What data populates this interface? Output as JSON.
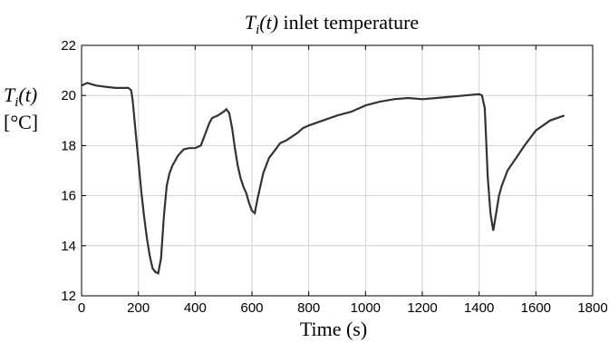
{
  "chart_data": {
    "type": "line",
    "title": {
      "symbol": "T",
      "subscript": "i",
      "arg": "(t)",
      "rest": " inlet temperature"
    },
    "xlabel": "Time (s)",
    "ylabel": {
      "symbol": "T",
      "subscript": "i",
      "arg": "(t)",
      "unit": "[°C]"
    },
    "xlim": [
      0,
      1800
    ],
    "ylim": [
      12,
      22
    ],
    "xticks": [
      0,
      200,
      400,
      600,
      800,
      1000,
      1200,
      1400,
      1600,
      1800
    ],
    "yticks": [
      12,
      14,
      16,
      18,
      20,
      22
    ],
    "grid": true,
    "line_color": "#333333",
    "series": [
      {
        "x": [
          0,
          20,
          50,
          80,
          120,
          150,
          165,
          175,
          180,
          190,
          200,
          210,
          220,
          230,
          240,
          250,
          260,
          270,
          280,
          290,
          300,
          310,
          320,
          340,
          360,
          380,
          400,
          420,
          440,
          450,
          460,
          480,
          500,
          510,
          520,
          530,
          540,
          550,
          560,
          570,
          580,
          590,
          600,
          610,
          620,
          640,
          660,
          680,
          700,
          720,
          740,
          760,
          780,
          800,
          850,
          900,
          950,
          1000,
          1050,
          1100,
          1150,
          1200,
          1250,
          1300,
          1350,
          1400,
          1410,
          1420,
          1425,
          1430,
          1440,
          1450,
          1460,
          1470,
          1480,
          1500,
          1530,
          1560,
          1600,
          1650,
          1700
        ],
        "y": [
          20.4,
          20.5,
          20.4,
          20.35,
          20.3,
          20.3,
          20.3,
          20.2,
          19.8,
          18.6,
          17.4,
          16.2,
          15.2,
          14.3,
          13.6,
          13.1,
          12.95,
          12.9,
          13.5,
          15.2,
          16.4,
          16.9,
          17.2,
          17.6,
          17.85,
          17.9,
          17.9,
          18.0,
          18.6,
          18.9,
          19.1,
          19.2,
          19.35,
          19.45,
          19.3,
          18.7,
          17.9,
          17.2,
          16.7,
          16.35,
          16.1,
          15.7,
          15.4,
          15.3,
          15.9,
          16.9,
          17.5,
          17.8,
          18.1,
          18.2,
          18.35,
          18.5,
          18.7,
          18.8,
          19.0,
          19.2,
          19.35,
          19.6,
          19.75,
          19.85,
          19.9,
          19.85,
          19.9,
          19.95,
          20.0,
          20.05,
          20.0,
          19.5,
          18.2,
          16.8,
          15.3,
          14.6,
          15.3,
          16.0,
          16.4,
          17.0,
          17.5,
          18.0,
          18.6,
          19.0,
          19.2
        ]
      }
    ]
  }
}
